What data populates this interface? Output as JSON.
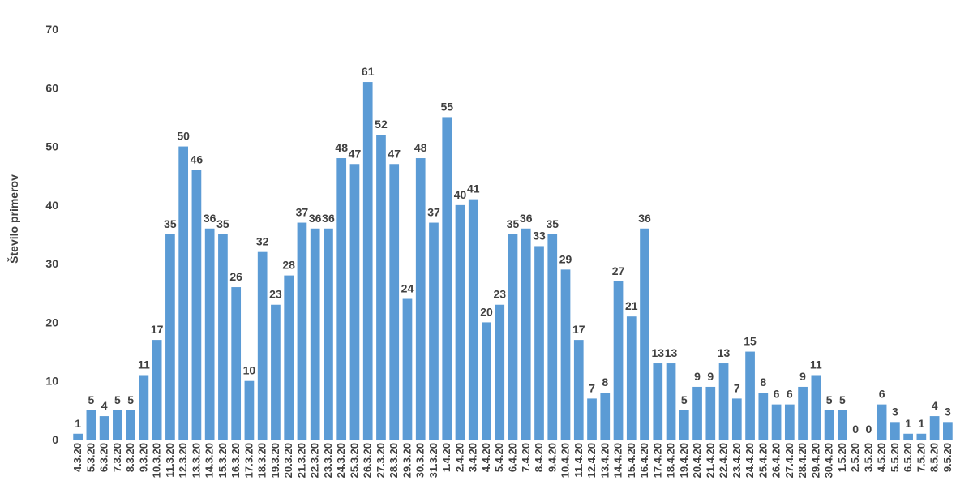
{
  "chart_data": {
    "type": "bar",
    "title": "",
    "xlabel": "",
    "ylabel": "Število primerov",
    "ylim": [
      0,
      70
    ],
    "yticks": [
      0,
      10,
      20,
      30,
      40,
      50,
      60,
      70
    ],
    "grid": false,
    "bar_color": "#5b9bd5",
    "categories": [
      "4.3.20",
      "5.3.20",
      "6.3.20",
      "7.3.20",
      "8.3.20",
      "9.3.20",
      "10.3.20",
      "11.3.20",
      "12.3.20",
      "13.3.20",
      "14.3.20",
      "15.3.20",
      "16.3.20",
      "17.3.20",
      "18.3.20",
      "19.3.20",
      "20.3.20",
      "21.3.20",
      "22.3.20",
      "23.3.20",
      "24.3.20",
      "25.3.20",
      "26.3.20",
      "27.3.20",
      "28.3.20",
      "29.3.20",
      "30.3.20",
      "31.3.20",
      "1.4.20",
      "2.4.20",
      "3.4.20",
      "4.4.20",
      "5.4.20",
      "6.4.20",
      "7.4.20",
      "8.4.20",
      "9.4.20",
      "10.4.20",
      "11.4.20",
      "12.4.20",
      "13.4.20",
      "14.4.20",
      "15.4.20",
      "16.4.20",
      "17.4.20",
      "18.4.20",
      "19.4.20",
      "20.4.20",
      "21.4.20",
      "22.4.20",
      "23.4.20",
      "24.4.20",
      "25.4.20",
      "26.4.20",
      "27.4.20",
      "28.4.20",
      "29.4.20",
      "30.4.20",
      "1.5.20",
      "2.5.20",
      "3.5.20",
      "4.5.20",
      "5.5.20",
      "6.5.20",
      "7.5.20",
      "8.5.20",
      "9.5.20"
    ],
    "values": [
      1,
      5,
      4,
      5,
      5,
      11,
      17,
      35,
      50,
      46,
      36,
      35,
      26,
      10,
      32,
      23,
      28,
      37,
      36,
      36,
      48,
      47,
      61,
      52,
      47,
      24,
      48,
      37,
      55,
      40,
      41,
      20,
      23,
      35,
      36,
      33,
      35,
      29,
      17,
      7,
      8,
      27,
      21,
      36,
      13,
      13,
      5,
      9,
      9,
      13,
      7,
      15,
      8,
      6,
      6,
      9,
      11,
      5,
      5,
      0,
      0,
      6,
      3,
      1,
      1,
      4,
      3
    ]
  }
}
